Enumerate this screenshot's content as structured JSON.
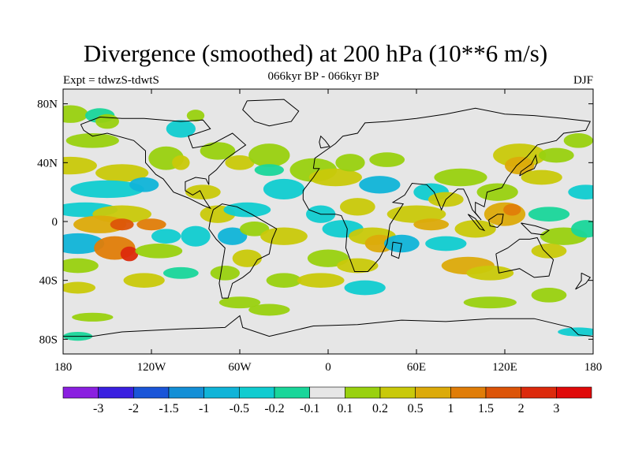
{
  "title": "Divergence (smoothed) at 200 hPa (10**6 m/s)",
  "subtitle_left": "Expt = tdwzS-tdwtS",
  "subtitle_center": "066kyr BP - 066kyr BP",
  "subtitle_right": "DJF",
  "map": {
    "projection": "cylindrical-equidistant",
    "lon_range": [
      -180,
      180
    ],
    "lat_range": [
      -90,
      90
    ],
    "lat_labels": [
      "80N",
      "40N",
      "0",
      "40S",
      "80S"
    ],
    "lon_labels": [
      "180",
      "120W",
      "60W",
      "0",
      "60E",
      "120E",
      "180"
    ],
    "land_color": "#e6e6e6",
    "coastline_color": "#000000"
  },
  "legend": {
    "labels": [
      "-3",
      "-2",
      "-1.5",
      "-1",
      "-0.5",
      "-0.2",
      "-0.1",
      "0.1",
      "0.2",
      "0.5",
      "1",
      "1.5",
      "2",
      "3"
    ],
    "colors": [
      "#8a1fe0",
      "#3a1fe0",
      "#1a55d8",
      "#148fd6",
      "#10b4d8",
      "#10ccd0",
      "#19d69a",
      "#e6e6e6",
      "#99d10f",
      "#c9c90a",
      "#dcaa0a",
      "#e07d08",
      "#dc5408",
      "#dc2a0c",
      "#e00a0a"
    ]
  }
}
